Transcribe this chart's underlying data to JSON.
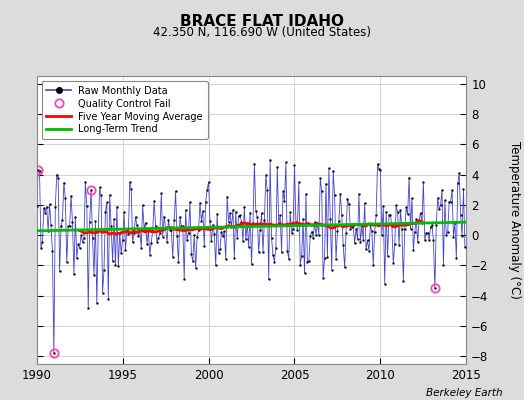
{
  "title": "BRACE FLAT IDAHO",
  "subtitle": "42.350 N, 116.690 W (United States)",
  "ylabel": "Temperature Anomaly (°C)",
  "credit": "Berkeley Earth",
  "xlim": [
    1990,
    2015
  ],
  "ylim": [
    -8.5,
    10.5
  ],
  "yticks": [
    -8,
    -6,
    -4,
    -2,
    0,
    2,
    4,
    6,
    8,
    10
  ],
  "xticks": [
    1990,
    1995,
    2000,
    2005,
    2010,
    2015
  ],
  "bg_color": "#dcdcdc",
  "plot_bg_color": "#ffffff",
  "raw_line_color": "#4444cc",
  "raw_dot_color": "#111111",
  "qc_fail_color": "#ff44bb",
  "moving_avg_color": "#ff0000",
  "trend_color": "#00bb00",
  "seed": 137
}
